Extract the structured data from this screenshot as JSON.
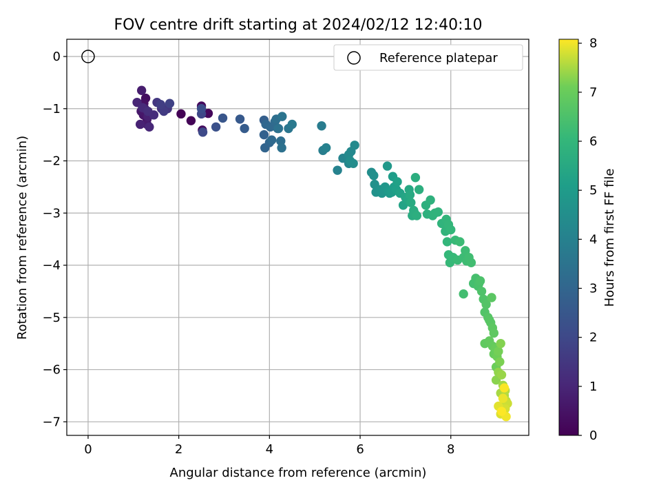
{
  "chart_data": {
    "type": "scatter",
    "title": "FOV centre drift starting at 2024/02/12 12:40:10",
    "xlabel": "Angular distance from reference (arcmin)",
    "ylabel": "Rotation from reference (arcmin)",
    "xlim": [
      -0.47,
      9.72
    ],
    "ylim": [
      -7.26,
      0.33
    ],
    "xticks": [
      "0",
      "2",
      "4",
      "6",
      "8"
    ],
    "yticks": [
      "0",
      "−1",
      "−2",
      "−3",
      "−4",
      "−5",
      "−6",
      "−7"
    ],
    "grid": true,
    "legend": {
      "placement": "top-right",
      "entries": [
        "Reference platepar"
      ]
    },
    "reference_point": {
      "label": "Reference platepar",
      "x": 0,
      "y": 0
    },
    "colorbar": {
      "label": "Hours from first FF file",
      "colormap": "viridis",
      "range": [
        0,
        8.08
      ],
      "ticks": [
        "0",
        "1",
        "2",
        "3",
        "4",
        "5",
        "6",
        "7",
        "8"
      ]
    },
    "series": [
      {
        "points": [
          [
            2.05,
            -1.1,
            0.05
          ],
          [
            2.27,
            -1.23,
            0.1
          ],
          [
            2.55,
            -1.08,
            0.15
          ],
          [
            2.65,
            -1.09,
            0.2
          ],
          [
            2.5,
            -0.95,
            0.25
          ],
          [
            2.52,
            -1.41,
            0.3
          ],
          [
            1.27,
            -0.8,
            0.35
          ],
          [
            1.23,
            -0.9,
            0.4
          ],
          [
            1.3,
            -1.2,
            0.5
          ],
          [
            1.22,
            -1.12,
            0.55
          ],
          [
            1.17,
            -1.05,
            0.6
          ],
          [
            1.3,
            -1.3,
            0.7
          ],
          [
            1.18,
            -0.65,
            0.75
          ],
          [
            1.25,
            -1.0,
            0.8
          ],
          [
            1.32,
            -1.15,
            0.85
          ],
          [
            1.15,
            -1.3,
            0.9
          ],
          [
            1.08,
            -0.88,
            1.0
          ],
          [
            1.35,
            -1.35,
            1.05
          ],
          [
            1.2,
            -0.98,
            1.1
          ],
          [
            1.45,
            -1.12,
            1.2
          ],
          [
            1.32,
            -1.05,
            1.25
          ],
          [
            1.62,
            -1.0,
            1.35
          ],
          [
            1.75,
            -1.0,
            1.45
          ],
          [
            1.52,
            -0.88,
            1.5
          ],
          [
            1.67,
            -1.05,
            1.6
          ],
          [
            1.6,
            -0.92,
            1.7
          ],
          [
            1.8,
            -0.9,
            1.8
          ],
          [
            2.5,
            -1.1,
            1.95
          ],
          [
            2.53,
            -1.45,
            2.05
          ],
          [
            2.5,
            -1.0,
            2.15
          ],
          [
            2.82,
            -1.35,
            2.3
          ],
          [
            2.97,
            -1.18,
            2.45
          ],
          [
            3.35,
            -1.2,
            2.55
          ],
          [
            3.45,
            -1.38,
            2.65
          ],
          [
            3.88,
            -1.22,
            2.75
          ],
          [
            3.88,
            -1.5,
            2.85
          ],
          [
            3.9,
            -1.75,
            2.95
          ],
          [
            4.0,
            -1.65,
            3.0
          ],
          [
            3.92,
            -1.3,
            3.05
          ],
          [
            4.02,
            -1.35,
            3.1
          ],
          [
            4.05,
            -1.6,
            3.15
          ],
          [
            4.12,
            -1.25,
            3.2
          ],
          [
            4.18,
            -1.38,
            3.25
          ],
          [
            4.25,
            -1.62,
            3.3
          ],
          [
            4.15,
            -1.2,
            3.35
          ],
          [
            4.27,
            -1.75,
            3.4
          ],
          [
            4.2,
            -1.38,
            3.45
          ],
          [
            4.28,
            -1.15,
            3.5
          ],
          [
            4.42,
            -1.38,
            3.6
          ],
          [
            4.5,
            -1.3,
            3.7
          ],
          [
            5.15,
            -1.33,
            3.8
          ],
          [
            5.18,
            -1.8,
            3.9
          ],
          [
            5.25,
            -1.75,
            4.0
          ],
          [
            5.5,
            -2.18,
            4.05
          ],
          [
            5.62,
            -1.95,
            4.1
          ],
          [
            5.72,
            -1.95,
            4.15
          ],
          [
            5.75,
            -2.05,
            4.2
          ],
          [
            5.8,
            -1.82,
            4.25
          ],
          [
            5.75,
            -1.88,
            4.3
          ],
          [
            5.88,
            -1.7,
            4.35
          ],
          [
            5.85,
            -2.05,
            4.4
          ],
          [
            5.78,
            -2.0,
            4.45
          ],
          [
            6.25,
            -2.22,
            4.5
          ],
          [
            6.3,
            -2.28,
            4.55
          ],
          [
            6.32,
            -2.45,
            4.6
          ],
          [
            6.35,
            -2.6,
            4.65
          ],
          [
            6.45,
            -2.55,
            4.7
          ],
          [
            6.48,
            -2.62,
            4.75
          ],
          [
            6.55,
            -2.5,
            4.8
          ],
          [
            6.6,
            -2.1,
            4.85
          ],
          [
            6.62,
            -2.58,
            4.9
          ],
          [
            6.65,
            -2.62,
            4.95
          ],
          [
            6.7,
            -2.6,
            5.0
          ],
          [
            6.72,
            -2.3,
            5.05
          ],
          [
            6.75,
            -2.5,
            5.1
          ],
          [
            6.8,
            -2.55,
            5.15
          ],
          [
            6.82,
            -2.4,
            5.2
          ],
          [
            6.88,
            -2.62,
            5.25
          ],
          [
            6.95,
            -2.85,
            5.3
          ],
          [
            7.0,
            -2.7,
            5.35
          ],
          [
            7.05,
            -2.75,
            5.4
          ],
          [
            7.08,
            -2.55,
            5.45
          ],
          [
            7.1,
            -2.65,
            5.5
          ],
          [
            7.12,
            -2.8,
            5.55
          ],
          [
            7.15,
            -3.05,
            5.6
          ],
          [
            7.18,
            -2.95,
            5.62
          ],
          [
            7.2,
            -3.0,
            5.65
          ],
          [
            7.22,
            -2.32,
            5.68
          ],
          [
            7.25,
            -3.05,
            5.7
          ],
          [
            7.3,
            -2.55,
            5.72
          ],
          [
            7.45,
            -2.85,
            5.75
          ],
          [
            7.48,
            -3.02,
            5.78
          ],
          [
            7.55,
            -2.75,
            5.8
          ],
          [
            7.6,
            -3.05,
            5.83
          ],
          [
            7.65,
            -3.0,
            5.85
          ],
          [
            7.72,
            -2.98,
            5.88
          ],
          [
            7.8,
            -3.2,
            5.9
          ],
          [
            7.88,
            -3.35,
            5.92
          ],
          [
            7.9,
            -3.12,
            5.95
          ],
          [
            7.92,
            -3.55,
            5.98
          ],
          [
            7.95,
            -3.22,
            6.0
          ],
          [
            8.0,
            -3.32,
            6.02
          ],
          [
            7.95,
            -3.8,
            6.05
          ],
          [
            7.98,
            -3.95,
            6.08
          ],
          [
            8.05,
            -3.85,
            6.1
          ],
          [
            8.1,
            -3.52,
            6.12
          ],
          [
            8.15,
            -3.9,
            6.15
          ],
          [
            8.2,
            -3.55,
            6.18
          ],
          [
            8.28,
            -3.85,
            6.2
          ],
          [
            8.32,
            -3.72,
            6.23
          ],
          [
            8.35,
            -3.92,
            6.25
          ],
          [
            8.4,
            -3.85,
            6.28
          ],
          [
            8.45,
            -3.95,
            6.3
          ],
          [
            8.28,
            -4.55,
            6.33
          ],
          [
            8.5,
            -4.35,
            6.36
          ],
          [
            8.55,
            -4.25,
            6.4
          ],
          [
            8.6,
            -4.4,
            6.43
          ],
          [
            8.62,
            -4.35,
            6.46
          ],
          [
            8.65,
            -4.3,
            6.5
          ],
          [
            8.68,
            -4.5,
            6.53
          ],
          [
            8.72,
            -4.65,
            6.56
          ],
          [
            8.75,
            -4.9,
            6.6
          ],
          [
            8.78,
            -4.75,
            6.63
          ],
          [
            8.82,
            -5.0,
            6.66
          ],
          [
            8.85,
            -5.05,
            6.7
          ],
          [
            8.88,
            -5.1,
            6.73
          ],
          [
            8.9,
            -4.62,
            6.76
          ],
          [
            8.92,
            -5.2,
            6.8
          ],
          [
            8.95,
            -5.3,
            6.83
          ],
          [
            8.75,
            -5.5,
            6.86
          ],
          [
            8.85,
            -5.45,
            6.9
          ],
          [
            8.92,
            -5.55,
            6.93
          ],
          [
            8.95,
            -5.7,
            6.96
          ],
          [
            8.98,
            -5.6,
            7.0
          ],
          [
            9.0,
            -5.95,
            7.05
          ],
          [
            9.02,
            -5.75,
            7.1
          ],
          [
            9.05,
            -5.65,
            7.15
          ],
          [
            9.08,
            -5.85,
            7.2
          ],
          [
            9.1,
            -5.5,
            7.25
          ],
          [
            9.0,
            -6.2,
            7.3
          ],
          [
            9.05,
            -6.05,
            7.35
          ],
          [
            9.12,
            -6.1,
            7.4
          ],
          [
            9.15,
            -6.3,
            7.45
          ],
          [
            9.1,
            -6.45,
            7.5
          ],
          [
            9.18,
            -6.5,
            7.55
          ],
          [
            9.2,
            -6.4,
            7.6
          ],
          [
            9.22,
            -6.6,
            7.65
          ],
          [
            9.15,
            -6.7,
            7.7
          ],
          [
            9.25,
            -6.65,
            7.75
          ],
          [
            9.2,
            -6.75,
            7.8
          ],
          [
            9.1,
            -6.85,
            7.85
          ],
          [
            9.05,
            -6.7,
            7.9
          ],
          [
            9.15,
            -6.55,
            7.95
          ],
          [
            9.22,
            -6.9,
            8.0
          ],
          [
            9.18,
            -6.35,
            8.05
          ],
          [
            9.12,
            -6.8,
            8.07
          ]
        ]
      }
    ]
  }
}
